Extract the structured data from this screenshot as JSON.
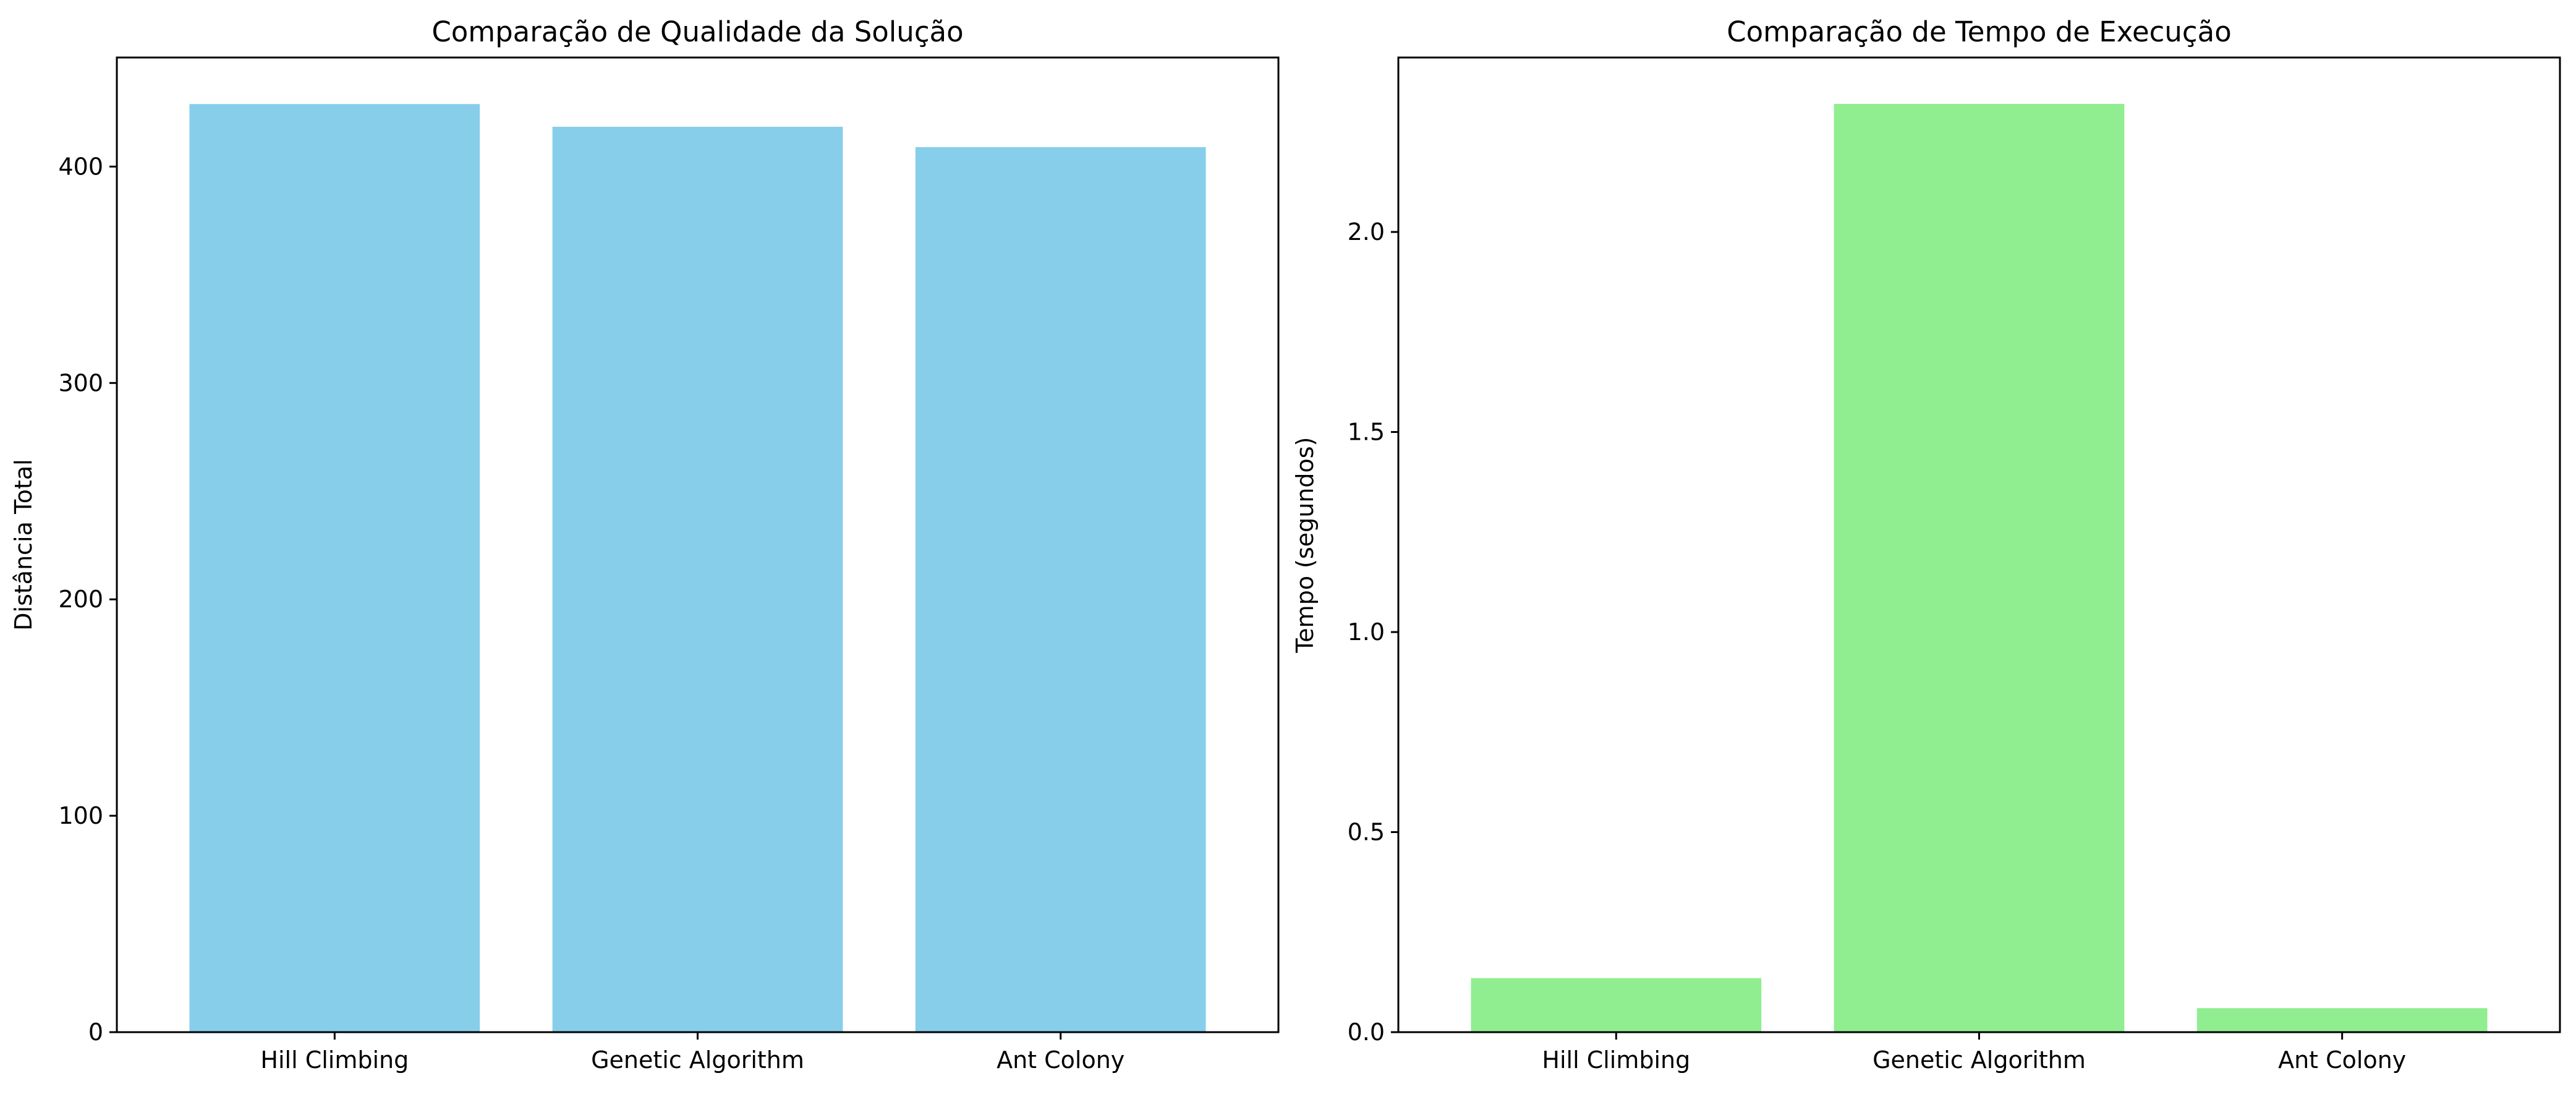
{
  "chart_data": [
    {
      "type": "bar",
      "title": "Comparação de Qualidade da Solução",
      "xlabel": "",
      "ylabel": "Distância Total",
      "categories": [
        "Hill Climbing",
        "Genetic Algorithm",
        "Ant Colony"
      ],
      "values": [
        428.9,
        418.4,
        409.0
      ],
      "ylim": [
        0,
        450.4
      ],
      "yticks": [
        0,
        100,
        200,
        300,
        400
      ],
      "ytick_labels": [
        "0",
        "100",
        "200",
        "300",
        "400"
      ],
      "bar_color": "#87CEEB",
      "grid": false,
      "legend": "none"
    },
    {
      "type": "bar",
      "title": "Comparação de Tempo de Execução",
      "xlabel": "",
      "ylabel": "Tempo (segundos)",
      "categories": [
        "Hill Climbing",
        "Genetic Algorithm",
        "Ant Colony"
      ],
      "values": [
        0.135,
        2.32,
        0.06
      ],
      "ylim": [
        0,
        2.436
      ],
      "yticks": [
        0,
        0.5,
        1.0,
        1.5,
        2.0
      ],
      "ytick_labels": [
        "0.0",
        "0.5",
        "1.0",
        "1.5",
        "2.0"
      ],
      "bar_color": "#90EE90",
      "grid": false,
      "legend": "none"
    }
  ]
}
